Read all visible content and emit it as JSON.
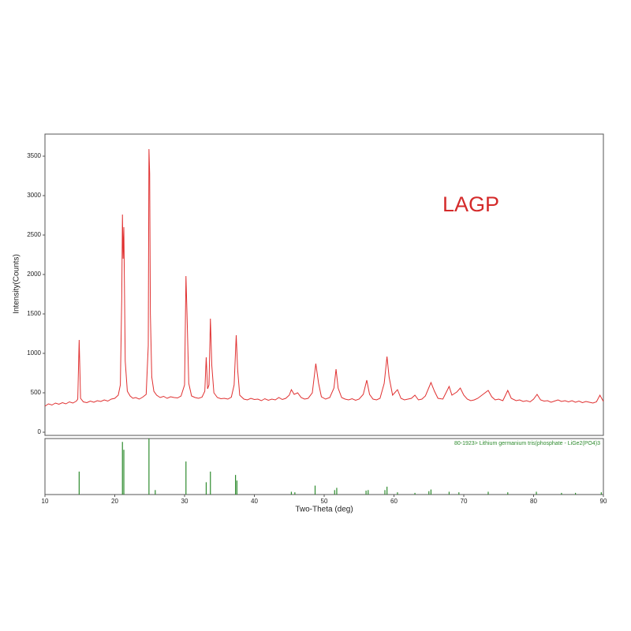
{
  "chart_data": [
    {
      "type": "line",
      "annotation": "LAGP",
      "y_label": "Intensity(Counts)",
      "color": "#e03030",
      "xlim": [
        10,
        90
      ],
      "ylim": [
        -40,
        3780
      ],
      "yticks": [
        0,
        500,
        1000,
        1500,
        2000,
        2500,
        3000,
        3500
      ],
      "x": [
        10,
        10.5,
        11,
        11.5,
        12,
        12.5,
        13,
        13.5,
        14,
        14.5,
        14.7,
        14.9,
        15.1,
        15.5,
        16,
        16.5,
        17,
        17.5,
        18,
        18.5,
        19,
        19.5,
        20,
        20.5,
        20.8,
        21.0,
        21.1,
        21.2,
        21.3,
        21.5,
        21.8,
        22.2,
        22.6,
        23,
        23.5,
        24,
        24.5,
        24.8,
        24.9,
        25.0,
        25.1,
        25.3,
        25.6,
        26,
        26.5,
        27,
        27.5,
        28,
        28.5,
        29,
        29.5,
        30,
        30.2,
        30.35,
        30.6,
        31,
        31.5,
        32,
        32.5,
        32.9,
        33.1,
        33.3,
        33.5,
        33.7,
        33.9,
        34.2,
        34.7,
        35.2,
        35.7,
        36.2,
        36.7,
        37.1,
        37.4,
        37.6,
        37.9,
        38.5,
        39,
        39.5,
        40,
        40.5,
        41,
        41.5,
        42,
        42.5,
        43,
        43.5,
        44,
        44.5,
        45,
        45.3,
        45.7,
        46.2,
        46.7,
        47.2,
        47.7,
        48.3,
        48.8,
        49.2,
        49.6,
        50.2,
        50.8,
        51.4,
        51.7,
        52.0,
        52.5,
        53,
        53.5,
        54,
        54.5,
        55,
        55.6,
        56.1,
        56.5,
        57,
        57.5,
        58,
        58.6,
        59.0,
        59.3,
        59.8,
        60.5,
        61,
        61.5,
        62,
        62.5,
        63,
        63.5,
        64,
        64.5,
        65.3,
        65.8,
        66.3,
        67,
        67.9,
        68.3,
        69,
        69.5,
        70,
        70.5,
        71,
        71.5,
        72,
        72.6,
        73.5,
        74,
        74.5,
        75,
        75.6,
        76.3,
        76.8,
        77.5,
        78,
        78.5,
        79,
        79.5,
        80,
        80.5,
        81,
        81.5,
        82,
        82.5,
        83,
        83.5,
        84,
        84.5,
        85,
        85.5,
        86,
        86.5,
        87,
        87.5,
        88,
        88.5,
        89,
        89.5,
        90
      ],
      "values": [
        330,
        360,
        345,
        370,
        355,
        375,
        360,
        385,
        370,
        395,
        420,
        1170,
        430,
        385,
        375,
        395,
        380,
        400,
        390,
        410,
        395,
        420,
        430,
        470,
        600,
        1700,
        2760,
        2200,
        2600,
        900,
        520,
        460,
        430,
        440,
        420,
        445,
        480,
        1100,
        3590,
        3280,
        1500,
        700,
        520,
        470,
        440,
        455,
        430,
        450,
        440,
        435,
        460,
        600,
        1980,
        1500,
        620,
        460,
        440,
        430,
        445,
        520,
        950,
        550,
        600,
        1440,
        850,
        500,
        440,
        425,
        430,
        420,
        445,
        600,
        1230,
        800,
        470,
        420,
        410,
        430,
        415,
        420,
        400,
        425,
        405,
        420,
        410,
        440,
        415,
        430,
        470,
        540,
        480,
        500,
        440,
        420,
        430,
        500,
        870,
        620,
        450,
        420,
        440,
        560,
        800,
        560,
        440,
        420,
        410,
        425,
        405,
        420,
        480,
        660,
        480,
        420,
        410,
        430,
        620,
        960,
        700,
        470,
        540,
        430,
        410,
        420,
        430,
        470,
        410,
        420,
        460,
        630,
        520,
        430,
        420,
        580,
        470,
        510,
        560,
        470,
        420,
        400,
        410,
        430,
        470,
        530,
        450,
        410,
        420,
        400,
        530,
        430,
        400,
        410,
        390,
        400,
        385,
        420,
        480,
        410,
        395,
        400,
        380,
        395,
        410,
        390,
        400,
        385,
        400,
        380,
        395,
        375,
        390,
        380,
        370,
        385,
        470,
        390
      ]
    },
    {
      "type": "stem",
      "label": "80-1923> Lithium germanium tris(phosphate - LiGe2(PO4)3",
      "x_label": "Two-Theta (deg)",
      "color": "#2e8b2e",
      "xlim": [
        10,
        90
      ],
      "ylim": [
        0,
        100
      ],
      "xticks": [
        10,
        20,
        30,
        40,
        50,
        60,
        70,
        80,
        90
      ],
      "x": [
        14.9,
        21.1,
        21.3,
        24.9,
        25.8,
        30.2,
        33.1,
        33.7,
        37.3,
        37.5,
        45.3,
        45.8,
        48.7,
        51.5,
        51.8,
        56.0,
        56.3,
        58.7,
        59.0,
        60.5,
        63.0,
        65.0,
        65.3,
        67.9,
        69.3,
        73.5,
        76.3,
        80.4,
        84.0,
        86.0,
        89.7
      ],
      "values": [
        41,
        94,
        80,
        100,
        8,
        59,
        22,
        41,
        35,
        25,
        5,
        4,
        16,
        8,
        12,
        7,
        8,
        8,
        14,
        4,
        3,
        6,
        9,
        5,
        4,
        5,
        4,
        5,
        3,
        3,
        4
      ]
    }
  ]
}
